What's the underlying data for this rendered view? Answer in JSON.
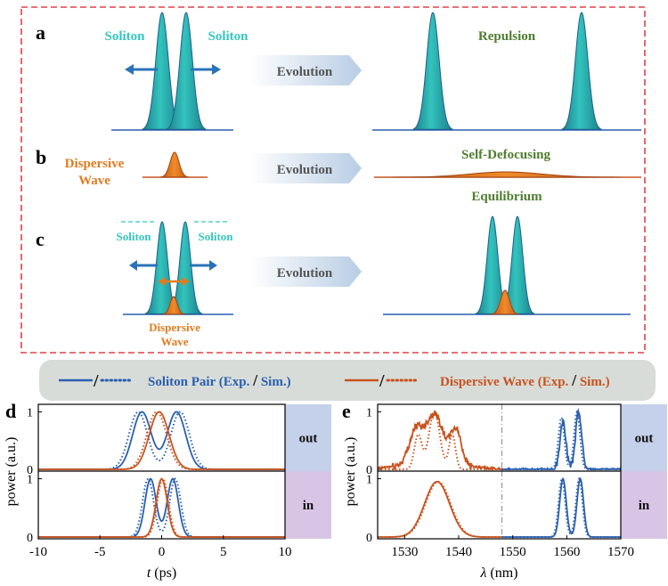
{
  "panels": {
    "a": {
      "letter": "a",
      "soliton_left": "Soliton",
      "soliton_right": "Soliton",
      "arrow": "Evolution",
      "result": "Repulsion"
    },
    "b": {
      "letter": "b",
      "dw_line1": "Dispersive",
      "dw_line2": "Wave",
      "arrow": "Evolution",
      "result": "Self-Defocusing"
    },
    "c": {
      "letter": "c",
      "soliton_left": "Soliton",
      "soliton_right": "Soliton",
      "dw_line1": "Dispersive",
      "dw_line2": "Wave",
      "arrow": "Evolution",
      "result": "Equilibrium"
    },
    "d": {
      "letter": "d"
    },
    "e": {
      "letter": "e"
    }
  },
  "legend": {
    "soliton_label": "Soliton Pair (Exp.",
    "soliton_sim": "Sim.)",
    "dw_label": "Dispersive Wave (Exp.",
    "dw_sim": "Sim.)",
    "slash": "/"
  },
  "colors": {
    "soliton": "#2a5fb0",
    "soliton_fill": "#2bb5b0",
    "dw": "#c8531f",
    "dw_fill": "#e0781f",
    "result_text": "#4e7d2f",
    "soliton_text": "#35c6c0",
    "dw_text": "#e07b1f",
    "out_box": "#c5d0ea",
    "in_box": "#d8c5e6",
    "dashed_border": "#e0414a"
  },
  "chart_data": [
    {
      "id": "d",
      "type": "line",
      "xlabel_var": "t",
      "xlabel_unit": "(ps)",
      "ylabel": "power (a.u.)",
      "xlim": [
        -10,
        10
      ],
      "ylim": [
        0,
        1.1
      ],
      "xticks": [
        "-10",
        "-5",
        "0",
        "5",
        "10"
      ],
      "yticks": [
        "0",
        "1"
      ],
      "subplots": [
        {
          "tag": "out",
          "series": [
            {
              "name": "Soliton Pair (Exp.)",
              "style": "solid",
              "color": "soliton",
              "gaussians": [
                [
                  -1.6,
                  0.75,
                  1.0
                ],
                [
                  1.2,
                  0.75,
                  1.0
                ]
              ]
            },
            {
              "name": "Soliton Pair (Sim.)",
              "style": "dotted",
              "color": "soliton",
              "gaussians": [
                [
                  -1.9,
                  0.75,
                  1.0
                ],
                [
                  1.5,
                  0.75,
                  1.0
                ]
              ]
            },
            {
              "name": "Dispersive Wave (Exp.)",
              "style": "solid",
              "color": "dw",
              "gaussians": [
                [
                  -0.2,
                  0.8,
                  1.0
                ]
              ]
            },
            {
              "name": "Dispersive Wave (Sim.)",
              "style": "dotted",
              "color": "dw",
              "gaussians": [
                [
                  -0.4,
                  0.8,
                  1.0
                ]
              ]
            }
          ]
        },
        {
          "tag": "in",
          "series": [
            {
              "name": "Soliton Pair (Exp.)",
              "style": "solid",
              "color": "soliton",
              "gaussians": [
                [
                  -0.9,
                  0.45,
                  1.0
                ],
                [
                  0.9,
                  0.45,
                  1.0
                ]
              ]
            },
            {
              "name": "Soliton Pair (Sim.)",
              "style": "dotted",
              "color": "soliton",
              "gaussians": [
                [
                  -1.1,
                  0.45,
                  1.0
                ],
                [
                  1.1,
                  0.45,
                  1.0
                ]
              ]
            },
            {
              "name": "Dispersive Wave (Exp.)",
              "style": "solid",
              "color": "dw",
              "gaussians": [
                [
                  0.0,
                  0.45,
                  1.0
                ]
              ]
            },
            {
              "name": "Dispersive Wave (Sim.)",
              "style": "dotted",
              "color": "dw",
              "gaussians": [
                [
                  0.1,
                  0.45,
                  1.0
                ]
              ]
            }
          ]
        }
      ]
    },
    {
      "id": "e",
      "type": "line",
      "xlabel_var": "λ",
      "xlabel_unit": "(nm)",
      "ylabel": "power (a.u.)",
      "xlim": [
        1525,
        1570
      ],
      "ylim": [
        0,
        1.1
      ],
      "xticks": [
        "1530",
        "1540",
        "1550",
        "1560",
        "1570"
      ],
      "yticks": [
        "0",
        "1"
      ],
      "divider_x": 1548,
      "subplots": [
        {
          "tag": "out",
          "series": [
            {
              "name": "Dispersive Wave (Exp.)",
              "style": "solid",
              "color": "dw",
              "noisy": true,
              "baseline": 0.12,
              "gaussians": [
                [
                  1532,
                  1.2,
                  0.55
                ],
                [
                  1535.5,
                  1.6,
                  0.85
                ],
                [
                  1539.5,
                  1.0,
                  0.6
                ]
              ],
              "range": [
                1525,
                1548
              ]
            },
            {
              "name": "Dispersive Wave (Sim.)",
              "style": "dotted",
              "color": "dw",
              "gaussians": [
                [
                  1532.5,
                  0.7,
                  0.6
                ],
                [
                  1535.5,
                  1.0,
                  1.0
                ],
                [
                  1538.8,
                  0.6,
                  0.6
                ]
              ],
              "range": [
                1525,
                1548
              ]
            },
            {
              "name": "Soliton Pair (Exp.)",
              "style": "solid",
              "color": "soliton",
              "noisy": true,
              "baseline": 0.0,
              "gaussians": [
                [
                  1559.3,
                  0.55,
                  0.85
                ],
                [
                  1562.2,
                  0.55,
                  1.0
                ]
              ],
              "range": [
                1548,
                1570
              ]
            },
            {
              "name": "Soliton Pair (Sim.)",
              "style": "dotted",
              "color": "soliton",
              "gaussians": [
                [
                  1559.0,
                  0.55,
                  0.9
                ],
                [
                  1561.9,
                  0.55,
                  1.0
                ]
              ],
              "range": [
                1548,
                1570
              ]
            }
          ]
        },
        {
          "tag": "in",
          "series": [
            {
              "name": "Dispersive Wave (Exp.)",
              "style": "solid",
              "color": "dw",
              "gaussians": [
                [
                  1536,
                  2.3,
                  0.95
                ]
              ],
              "range": [
                1525,
                1548
              ]
            },
            {
              "name": "Dispersive Wave (Sim.)",
              "style": "dotted",
              "color": "dw",
              "gaussians": [
                [
                  1536.2,
                  2.3,
                  0.95
                ]
              ],
              "range": [
                1525,
                1548
              ]
            },
            {
              "name": "Soliton Pair (Exp.)",
              "style": "solid",
              "color": "soliton",
              "gaussians": [
                [
                  1559.3,
                  0.6,
                  1.0
                ],
                [
                  1562.5,
                  0.6,
                  1.0
                ]
              ],
              "range": [
                1548,
                1570
              ]
            },
            {
              "name": "Soliton Pair (Sim.)",
              "style": "dotted",
              "color": "soliton",
              "gaussians": [
                [
                  1559.1,
                  0.6,
                  1.0
                ],
                [
                  1562.3,
                  0.6,
                  1.0
                ]
              ],
              "range": [
                1548,
                1570
              ]
            }
          ]
        }
      ]
    }
  ]
}
